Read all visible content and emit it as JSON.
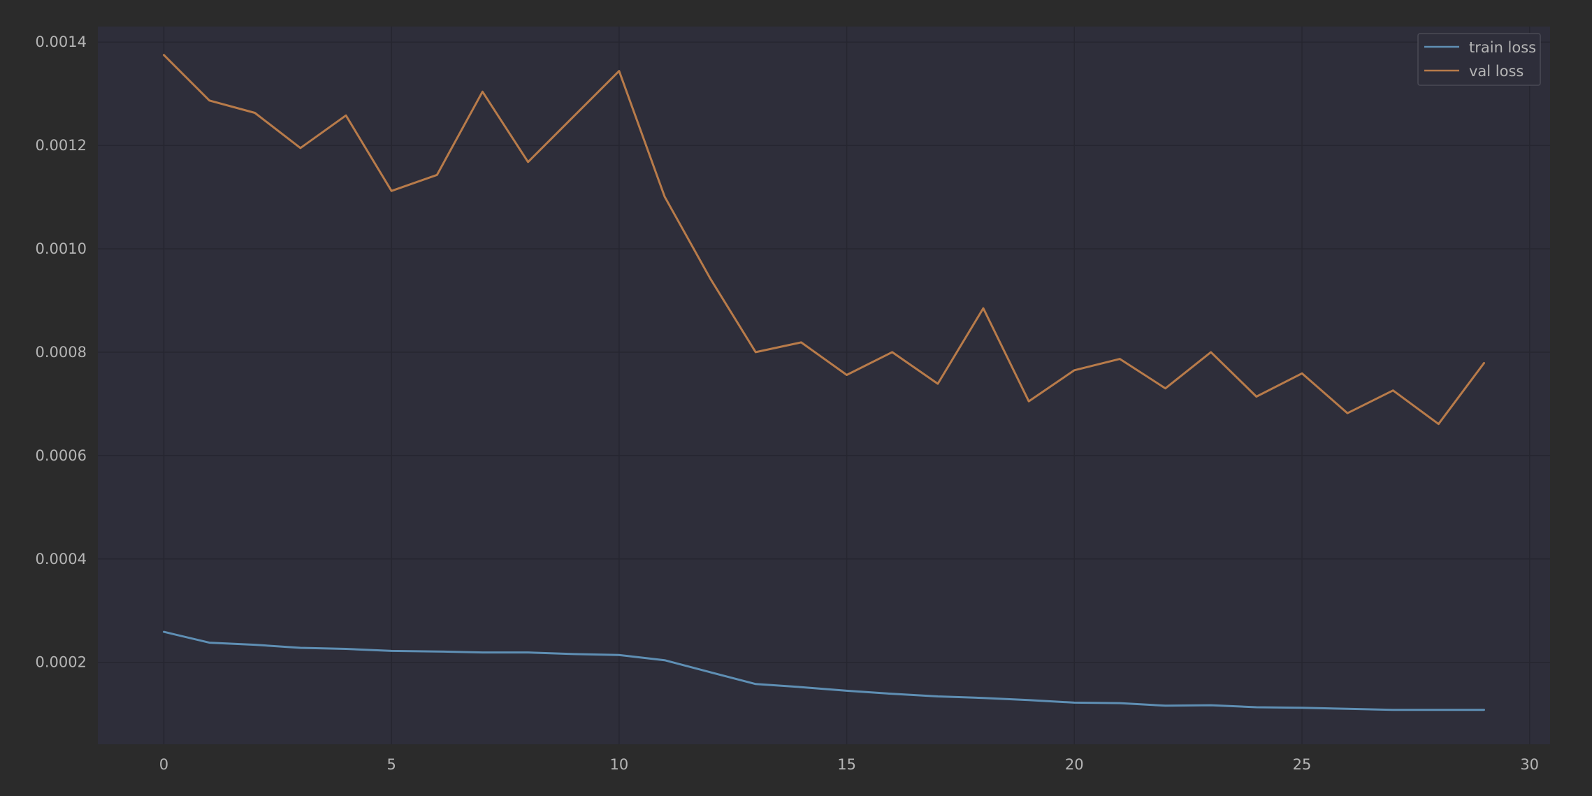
{
  "chart_data": {
    "type": "line",
    "title": "",
    "xlabel": "",
    "ylabel": "",
    "xlim": [
      -1.45,
      30.45
    ],
    "ylim": [
      4.14e-05,
      0.00143
    ],
    "x_ticks": [
      0,
      5,
      10,
      15,
      20,
      25,
      30
    ],
    "y_ticks": [
      0.0002,
      0.0004,
      0.0006,
      0.0008,
      0.001,
      0.0012,
      0.0014
    ],
    "y_tick_labels": [
      "0.0002",
      "0.0004",
      "0.0006",
      "0.0008",
      "0.0010",
      "0.0012",
      "0.0014"
    ],
    "grid": true,
    "legend_position": "top-right",
    "x": [
      0,
      1,
      2,
      3,
      4,
      5,
      6,
      7,
      8,
      9,
      10,
      11,
      12,
      13,
      14,
      15,
      16,
      17,
      18,
      19,
      20,
      21,
      22,
      23,
      24,
      25,
      26,
      27,
      28,
      29
    ],
    "series": [
      {
        "name": "train loss",
        "color": "#5f8fb4",
        "values": [
          0.000259,
          0.000238,
          0.000234,
          0.000228,
          0.000226,
          0.000222,
          0.000221,
          0.000219,
          0.000219,
          0.000216,
          0.000214,
          0.000204,
          0.000181,
          0.000158,
          0.000152,
          0.000145,
          0.000139,
          0.000134,
          0.000131,
          0.000127,
          0.000122,
          0.000121,
          0.000116,
          0.000117,
          0.000113,
          0.000112,
          0.00011,
          0.000108,
          0.000108,
          0.000108
        ]
      },
      {
        "name": "val loss",
        "color": "#b87b4a",
        "values": [
          0.001375,
          0.001287,
          0.001263,
          0.001195,
          0.001258,
          0.001112,
          0.001143,
          0.001304,
          0.001168,
          0.001256,
          0.001344,
          0.001101,
          0.000943,
          0.0008,
          0.000819,
          0.000756,
          0.0008,
          0.000739,
          0.000885,
          0.000705,
          0.000765,
          0.000787,
          0.00073,
          0.0008,
          0.000714,
          0.000759,
          0.000682,
          0.000726,
          0.000661,
          0.000779
        ]
      }
    ]
  },
  "colors": {
    "page_background": "#2b2b2b",
    "plot_background": "#2e2e3a",
    "grid": "#262630",
    "text": "#b5b5b5"
  }
}
